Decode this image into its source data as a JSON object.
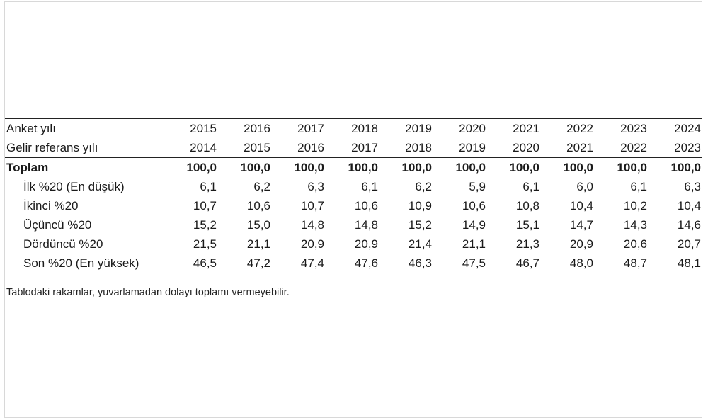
{
  "table": {
    "header_row": {
      "label": "Anket yılı",
      "values": [
        "2015",
        "2016",
        "2017",
        "2018",
        "2019",
        "2020",
        "2021",
        "2022",
        "2023",
        "2024"
      ]
    },
    "reference_row": {
      "label": "Gelir referans yılı",
      "values": [
        "2014",
        "2015",
        "2016",
        "2017",
        "2018",
        "2019",
        "2020",
        "2021",
        "2022",
        "2023"
      ]
    },
    "total_row": {
      "label": "Toplam",
      "values": [
        "100,0",
        "100,0",
        "100,0",
        "100,0",
        "100,0",
        "100,0",
        "100,0",
        "100,0",
        "100,0",
        "100,0"
      ]
    },
    "rows": [
      {
        "label": "İlk %20 (En düşük)",
        "values": [
          "6,1",
          "6,2",
          "6,3",
          "6,1",
          "6,2",
          "5,9",
          "6,1",
          "6,0",
          "6,1",
          "6,3"
        ]
      },
      {
        "label": "İkinci %20",
        "values": [
          "10,7",
          "10,6",
          "10,7",
          "10,6",
          "10,9",
          "10,6",
          "10,8",
          "10,4",
          "10,2",
          "10,4"
        ]
      },
      {
        "label": "Üçüncü %20",
        "values": [
          "15,2",
          "15,0",
          "14,8",
          "14,8",
          "15,2",
          "14,9",
          "15,1",
          "14,7",
          "14,3",
          "14,6"
        ]
      },
      {
        "label": "Dördüncü %20",
        "values": [
          "21,5",
          "21,1",
          "20,9",
          "20,9",
          "21,4",
          "21,1",
          "21,3",
          "20,9",
          "20,6",
          "20,7"
        ]
      },
      {
        "label": "Son %20 (En yüksek)",
        "values": [
          "46,5",
          "47,2",
          "47,4",
          "47,6",
          "46,3",
          "47,5",
          "46,7",
          "48,0",
          "48,7",
          "48,1"
        ]
      }
    ]
  },
  "footnote": "Tablodaki rakamlar, yuvarlamadan dolayı toplamı vermeyebilir."
}
